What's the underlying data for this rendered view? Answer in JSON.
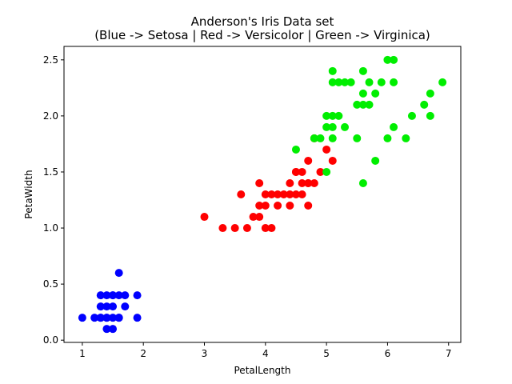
{
  "chart_data": {
    "type": "scatter",
    "title_line1": "Anderson's Iris Data set",
    "title_line2": "(Blue -> Setosa | Red -> Versicolor | Green -> Virginica)",
    "xlabel": "PetalLength",
    "ylabel": "PetaWidth",
    "xlim": [
      0.7,
      7.2
    ],
    "ylim": [
      -0.02,
      2.62
    ],
    "xticks": [
      1,
      2,
      3,
      4,
      5,
      6,
      7
    ],
    "xtick_labels": [
      "1",
      "2",
      "3",
      "4",
      "5",
      "6",
      "7"
    ],
    "yticks": [
      0.0,
      0.5,
      1.0,
      1.5,
      2.0,
      2.5
    ],
    "ytick_labels": [
      "0.0",
      "0.5",
      "1.0",
      "1.5",
      "2.0",
      "2.5"
    ],
    "grid": false,
    "legend": false,
    "series": [
      {
        "color": "#0000ff",
        "points": [
          [
            1.0,
            0.2
          ],
          [
            1.2,
            0.2
          ],
          [
            1.3,
            0.2
          ],
          [
            1.3,
            0.3
          ],
          [
            1.3,
            0.4
          ],
          [
            1.4,
            0.1
          ],
          [
            1.4,
            0.2
          ],
          [
            1.4,
            0.3
          ],
          [
            1.5,
            0.1
          ],
          [
            1.5,
            0.2
          ],
          [
            1.5,
            0.3
          ],
          [
            1.5,
            0.4
          ],
          [
            1.6,
            0.2
          ],
          [
            1.6,
            0.4
          ],
          [
            1.6,
            0.6
          ],
          [
            1.7,
            0.3
          ],
          [
            1.7,
            0.4
          ],
          [
            1.9,
            0.2
          ],
          [
            1.9,
            0.4
          ],
          [
            1.4,
            0.4
          ],
          [
            1.6,
            0.2
          ],
          [
            1.5,
            0.4
          ],
          [
            1.4,
            0.2
          ],
          [
            1.3,
            0.2
          ]
        ]
      },
      {
        "color": "#ff0000",
        "points": [
          [
            3.0,
            1.1
          ],
          [
            3.3,
            1.0
          ],
          [
            3.5,
            1.0
          ],
          [
            3.6,
            1.3
          ],
          [
            3.7,
            1.0
          ],
          [
            3.8,
            1.1
          ],
          [
            3.9,
            1.1
          ],
          [
            3.9,
            1.2
          ],
          [
            3.9,
            1.4
          ],
          [
            4.0,
            1.0
          ],
          [
            4.0,
            1.2
          ],
          [
            4.0,
            1.3
          ],
          [
            4.1,
            1.0
          ],
          [
            4.1,
            1.3
          ],
          [
            4.2,
            1.2
          ],
          [
            4.2,
            1.3
          ],
          [
            4.3,
            1.3
          ],
          [
            4.4,
            1.2
          ],
          [
            4.4,
            1.3
          ],
          [
            4.4,
            1.4
          ],
          [
            4.5,
            1.3
          ],
          [
            4.5,
            1.5
          ],
          [
            4.6,
            1.3
          ],
          [
            4.6,
            1.4
          ],
          [
            4.6,
            1.5
          ],
          [
            4.7,
            1.2
          ],
          [
            4.7,
            1.4
          ],
          [
            4.7,
            1.6
          ],
          [
            4.8,
            1.4
          ],
          [
            4.8,
            1.8
          ],
          [
            4.9,
            1.5
          ],
          [
            5.0,
            1.7
          ],
          [
            5.1,
            1.6
          ],
          [
            4.5,
            1.5
          ],
          [
            4.7,
            1.4
          ]
        ]
      },
      {
        "color": "#00ee00",
        "points": [
          [
            4.5,
            1.7
          ],
          [
            4.8,
            1.8
          ],
          [
            4.9,
            1.8
          ],
          [
            5.0,
            1.5
          ],
          [
            5.0,
            1.9
          ],
          [
            5.0,
            2.0
          ],
          [
            5.1,
            1.8
          ],
          [
            5.1,
            1.9
          ],
          [
            5.1,
            2.0
          ],
          [
            5.1,
            2.3
          ],
          [
            5.1,
            2.4
          ],
          [
            5.2,
            2.0
          ],
          [
            5.2,
            2.3
          ],
          [
            5.3,
            1.9
          ],
          [
            5.3,
            2.3
          ],
          [
            5.4,
            2.3
          ],
          [
            5.5,
            1.8
          ],
          [
            5.5,
            2.1
          ],
          [
            5.6,
            1.4
          ],
          [
            5.6,
            2.1
          ],
          [
            5.6,
            2.2
          ],
          [
            5.6,
            2.4
          ],
          [
            5.7,
            2.1
          ],
          [
            5.7,
            2.3
          ],
          [
            5.8,
            1.6
          ],
          [
            5.8,
            2.2
          ],
          [
            5.9,
            2.3
          ],
          [
            6.0,
            1.8
          ],
          [
            6.0,
            2.5
          ],
          [
            6.1,
            1.9
          ],
          [
            6.1,
            2.3
          ],
          [
            6.1,
            2.5
          ],
          [
            6.3,
            1.8
          ],
          [
            6.4,
            2.0
          ],
          [
            6.6,
            2.1
          ],
          [
            6.7,
            2.0
          ],
          [
            6.7,
            2.2
          ],
          [
            6.9,
            2.3
          ]
        ]
      }
    ]
  }
}
